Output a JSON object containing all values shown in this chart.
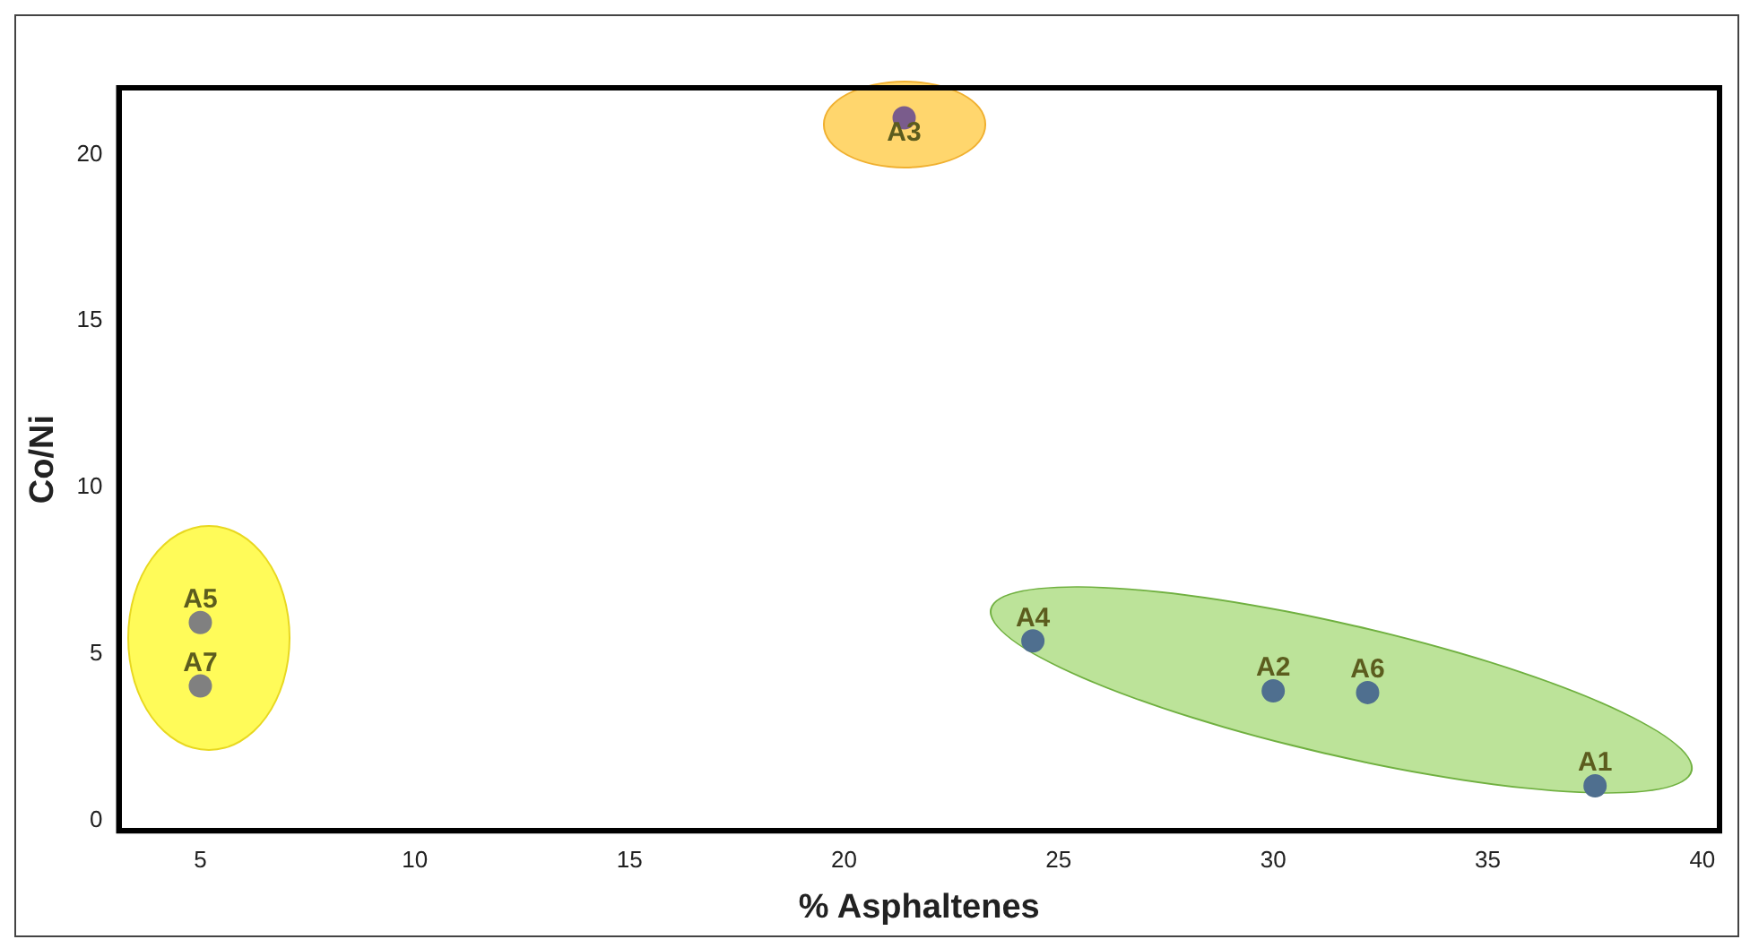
{
  "chart_data": {
    "type": "scatter",
    "xlabel": "% Asphaltenes",
    "ylabel": "Co/Ni",
    "x": [
      37.5,
      30,
      21.4,
      24.4,
      5,
      32.2,
      5
    ],
    "values": [
      1.05,
      3.9,
      21.1,
      5.4,
      5.95,
      3.85,
      4.05
    ],
    "colors": [
      "#4f6f8f",
      "#4f6f8f",
      "#7a5c8c",
      "#4f6f8f",
      "#808080",
      "#4f6f8f",
      "#808080"
    ],
    "annotations": [
      {
        "text": "A1",
        "x": 37.5,
        "y": 1.05
      },
      {
        "text": "A2",
        "x": 30,
        "y": 3.9
      },
      {
        "text": "A3",
        "x": 21.4,
        "y": 21.1
      },
      {
        "text": "A4",
        "x": 24.4,
        "y": 5.4
      },
      {
        "text": "A5",
        "x": 5,
        "y": 5.95
      },
      {
        "text": "A6",
        "x": 32.2,
        "y": 3.85
      },
      {
        "text": "A7",
        "x": 5,
        "y": 4.05
      }
    ],
    "xlim": [
      3.1,
      40.4
    ],
    "xticks": [
      5,
      10,
      15,
      20,
      25,
      30,
      35,
      40
    ],
    "ylim": [
      -0.3,
      22
    ],
    "yticks": [
      0,
      5,
      10,
      15,
      20
    ],
    "grid": false,
    "legend": false,
    "marker": "circle"
  }
}
